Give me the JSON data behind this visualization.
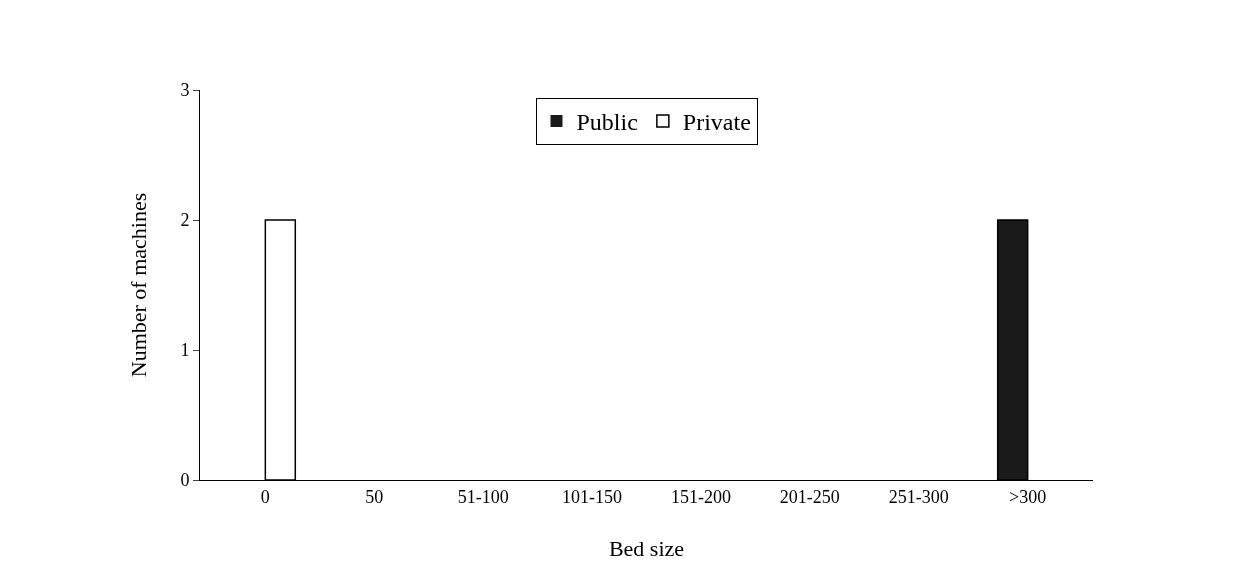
{
  "chart_data": {
    "type": "bar",
    "xlabel": "Bed size",
    "ylabel": "Number of machines",
    "categories": [
      "0",
      "50",
      "51-100",
      "101-150",
      "151-200",
      "201-250",
      "251-300",
      ">300"
    ],
    "series": [
      {
        "name": "Public",
        "color": "#1a1a1a",
        "values": [
          0,
          0,
          0,
          0,
          0,
          0,
          0,
          2
        ]
      },
      {
        "name": "Private",
        "color": "#ffffff",
        "values": [
          2,
          0,
          0,
          0,
          0,
          0,
          0,
          0
        ]
      }
    ],
    "ylim": [
      0,
      3
    ],
    "yticks": [
      0,
      1,
      2,
      3
    ],
    "grid": false,
    "legend": "top"
  }
}
